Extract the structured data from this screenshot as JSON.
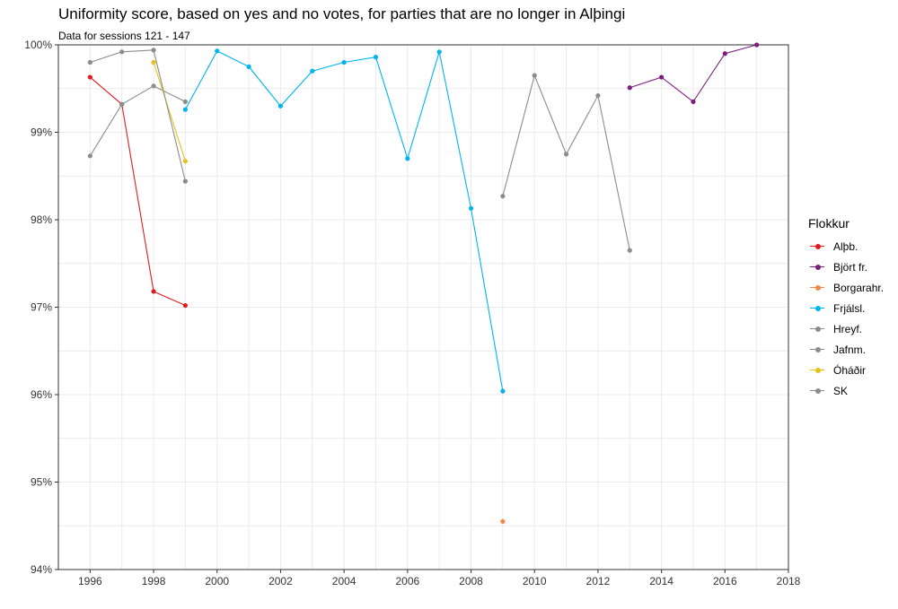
{
  "title": "Uniformity score, based on yes and no votes, for parties that are no longer in Alþingi",
  "subtitle": "Data for sessions 121 - 147",
  "chart_data": {
    "type": "line",
    "title": "Uniformity score, based on yes and no votes, for parties that are no longer in Alþingi",
    "subtitle": "Data for sessions 121 - 147",
    "xlabel": "",
    "ylabel": "",
    "xlim": [
      1995,
      2018
    ],
    "ylim": [
      94,
      100
    ],
    "x_ticks": [
      "1996",
      "1998",
      "2000",
      "2002",
      "2004",
      "2006",
      "2008",
      "2010",
      "2012",
      "2014",
      "2016",
      "2018"
    ],
    "y_ticks": [
      "94%",
      "95%",
      "96%",
      "97%",
      "98%",
      "99%",
      "100%"
    ],
    "grid": true,
    "legend_title": "Flokkur",
    "legend_position": "right",
    "series": [
      {
        "name": "Alþb.",
        "color": "#e41a1c",
        "x": [
          1996,
          1997,
          1998,
          1999
        ],
        "y": [
          99.63,
          99.32,
          97.18,
          97.02
        ]
      },
      {
        "name": "Björt fr.",
        "color": "#7b1c7e",
        "x": [
          2013,
          2014,
          2015,
          2016,
          2017
        ],
        "y": [
          99.51,
          99.63,
          99.35,
          99.9,
          100.0
        ]
      },
      {
        "name": "Borgarahr.",
        "color": "#f08a4b",
        "x": [
          2009
        ],
        "y": [
          94.55
        ]
      },
      {
        "name": "Frjálsl.",
        "color": "#00b4ee",
        "x": [
          1999,
          2000,
          2001,
          2002,
          2003,
          2004,
          2005,
          2006,
          2007,
          2008,
          2009
        ],
        "y": [
          99.26,
          99.93,
          99.75,
          99.3,
          99.7,
          99.8,
          99.86,
          98.7,
          99.92,
          98.13,
          96.04
        ]
      },
      {
        "name": "Hreyf.",
        "color": "#8c8c8c",
        "x": [
          2009,
          2010,
          2011,
          2012,
          2013
        ],
        "y": [
          98.27,
          99.65,
          98.75,
          99.42,
          97.65
        ]
      },
      {
        "name": "Jafnm.",
        "color": "#8c8c8c",
        "x": [
          1996,
          1997,
          1998,
          1999
        ],
        "y": [
          98.73,
          99.32,
          99.53,
          99.35
        ]
      },
      {
        "name": "Óháðir",
        "color": "#e8c21c",
        "x": [
          1998,
          1999
        ],
        "y": [
          99.8,
          98.67
        ]
      },
      {
        "name": "SK",
        "color": "#8c8c8c",
        "x": [
          1996,
          1997,
          1998,
          1999
        ],
        "y": [
          99.8,
          99.92,
          99.94,
          98.44
        ]
      }
    ]
  }
}
